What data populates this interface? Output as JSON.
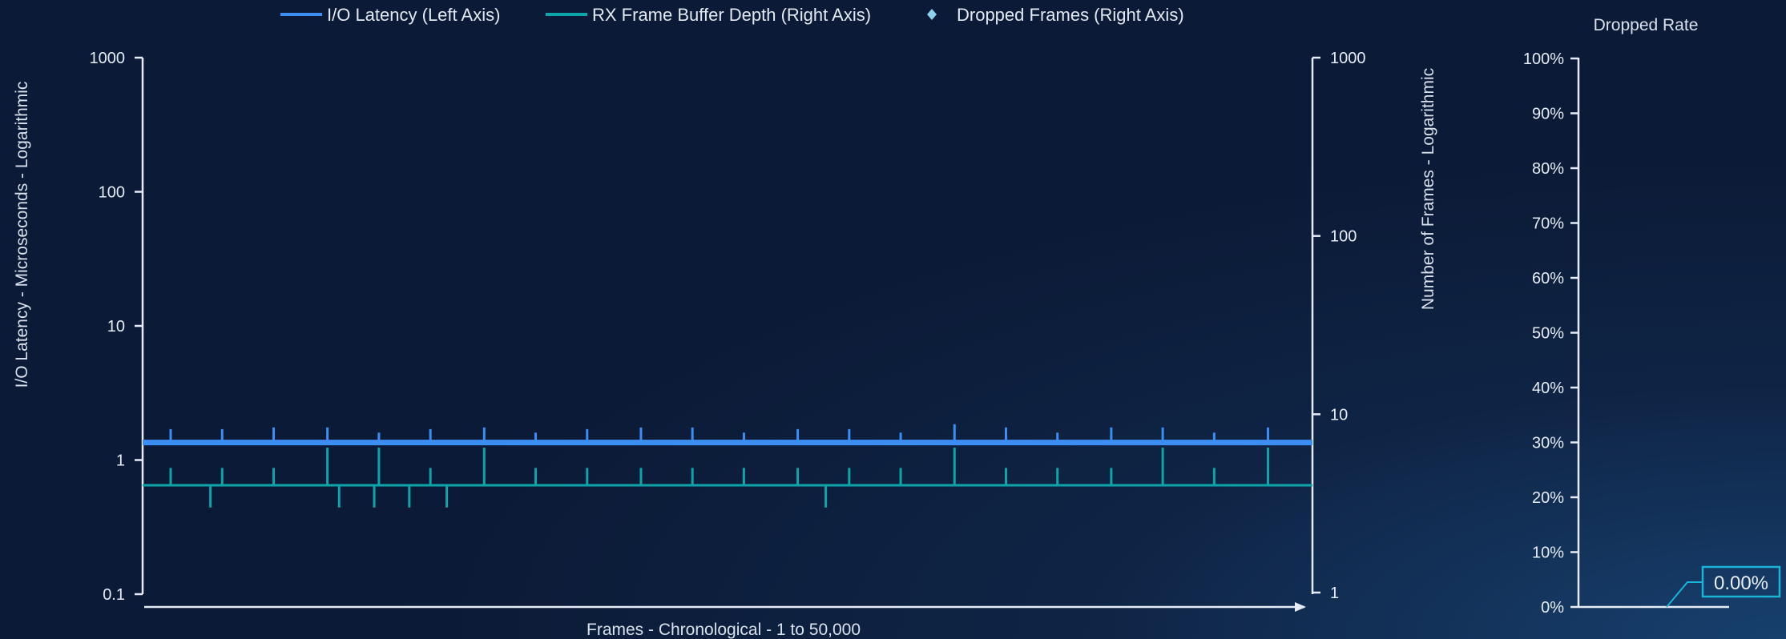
{
  "chart_data": [
    {
      "type": "line",
      "legend": [
        {
          "name": "I/O Latency (Left Axis)",
          "color": "#3d8ef2",
          "marker": "line"
        },
        {
          "name": "RX Frame Buffer Depth (Right Axis)",
          "color": "#0ea5a9",
          "marker": "line"
        },
        {
          "name": "Dropped Frames (Right Axis)",
          "color": "#8fd0f0",
          "marker": "diamond"
        }
      ],
      "xlabel": "Frames - Chronological - 1 to 50,000",
      "ylabel_left": "I/O Latency - Microseconds - Logarithmic",
      "ylabel_right": "Number of Frames - Logarithmic",
      "left_axis": {
        "scale": "log",
        "range": [
          0.1,
          1000
        ],
        "ticks": [
          "0.1",
          "1",
          "10",
          "100",
          "1000"
        ]
      },
      "right_axis": {
        "scale": "log",
        "range": [
          1,
          1000
        ],
        "ticks": [
          "1",
          "10",
          "100",
          "1000"
        ]
      },
      "x_range": [
        1,
        50000
      ],
      "series": [
        {
          "name": "I/O Latency (Left Axis)",
          "axis": "left",
          "baseline": 1.35,
          "spikes": [
            {
              "x": 1200,
              "y": 1.7
            },
            {
              "x": 3400,
              "y": 1.7
            },
            {
              "x": 5600,
              "y": 1.75
            },
            {
              "x": 7900,
              "y": 1.75
            },
            {
              "x": 10100,
              "y": 1.6
            },
            {
              "x": 12300,
              "y": 1.7
            },
            {
              "x": 14600,
              "y": 1.75
            },
            {
              "x": 16800,
              "y": 1.6
            },
            {
              "x": 19000,
              "y": 1.7
            },
            {
              "x": 21300,
              "y": 1.75
            },
            {
              "x": 23500,
              "y": 1.75
            },
            {
              "x": 25700,
              "y": 1.6
            },
            {
              "x": 28000,
              "y": 1.7
            },
            {
              "x": 30200,
              "y": 1.7
            },
            {
              "x": 32400,
              "y": 1.6
            },
            {
              "x": 34700,
              "y": 1.85
            },
            {
              "x": 36900,
              "y": 1.75
            },
            {
              "x": 39100,
              "y": 1.6
            },
            {
              "x": 41400,
              "y": 1.75
            },
            {
              "x": 43600,
              "y": 1.75
            },
            {
              "x": 45800,
              "y": 1.6
            },
            {
              "x": 48100,
              "y": 1.75
            }
          ]
        },
        {
          "name": "RX Frame Buffer Depth (Right Axis)",
          "axis": "right",
          "baseline": 4,
          "spikes": [
            {
              "x": 1200,
              "y": 5
            },
            {
              "x": 2900,
              "y": 3
            },
            {
              "x": 3400,
              "y": 5
            },
            {
              "x": 5600,
              "y": 5
            },
            {
              "x": 7900,
              "y": 6.5
            },
            {
              "x": 8400,
              "y": 3
            },
            {
              "x": 9900,
              "y": 3
            },
            {
              "x": 10100,
              "y": 6.5
            },
            {
              "x": 11400,
              "y": 3
            },
            {
              "x": 12300,
              "y": 5
            },
            {
              "x": 13000,
              "y": 3
            },
            {
              "x": 14600,
              "y": 6.5
            },
            {
              "x": 16800,
              "y": 5
            },
            {
              "x": 19000,
              "y": 5
            },
            {
              "x": 21300,
              "y": 5
            },
            {
              "x": 23500,
              "y": 5
            },
            {
              "x": 25700,
              "y": 5
            },
            {
              "x": 28000,
              "y": 5
            },
            {
              "x": 29200,
              "y": 3
            },
            {
              "x": 30200,
              "y": 5
            },
            {
              "x": 32400,
              "y": 5
            },
            {
              "x": 34700,
              "y": 6.5
            },
            {
              "x": 36900,
              "y": 5
            },
            {
              "x": 39100,
              "y": 5
            },
            {
              "x": 41400,
              "y": 5
            },
            {
              "x": 43600,
              "y": 6.5
            },
            {
              "x": 45800,
              "y": 5
            },
            {
              "x": 48100,
              "y": 6.5
            }
          ]
        },
        {
          "name": "Dropped Frames (Right Axis)",
          "axis": "right",
          "points": []
        }
      ],
      "grid": false
    },
    {
      "type": "bar",
      "title": "Dropped Rate",
      "y_axis": {
        "range": [
          0,
          100
        ],
        "unit": "%",
        "ticks": [
          "0%",
          "10%",
          "20%",
          "30%",
          "40%",
          "50%",
          "60%",
          "70%",
          "80%",
          "90%",
          "100%"
        ]
      },
      "values": [
        0
      ],
      "value_label": "0.00%",
      "callout_color": "#19b4d8"
    }
  ]
}
